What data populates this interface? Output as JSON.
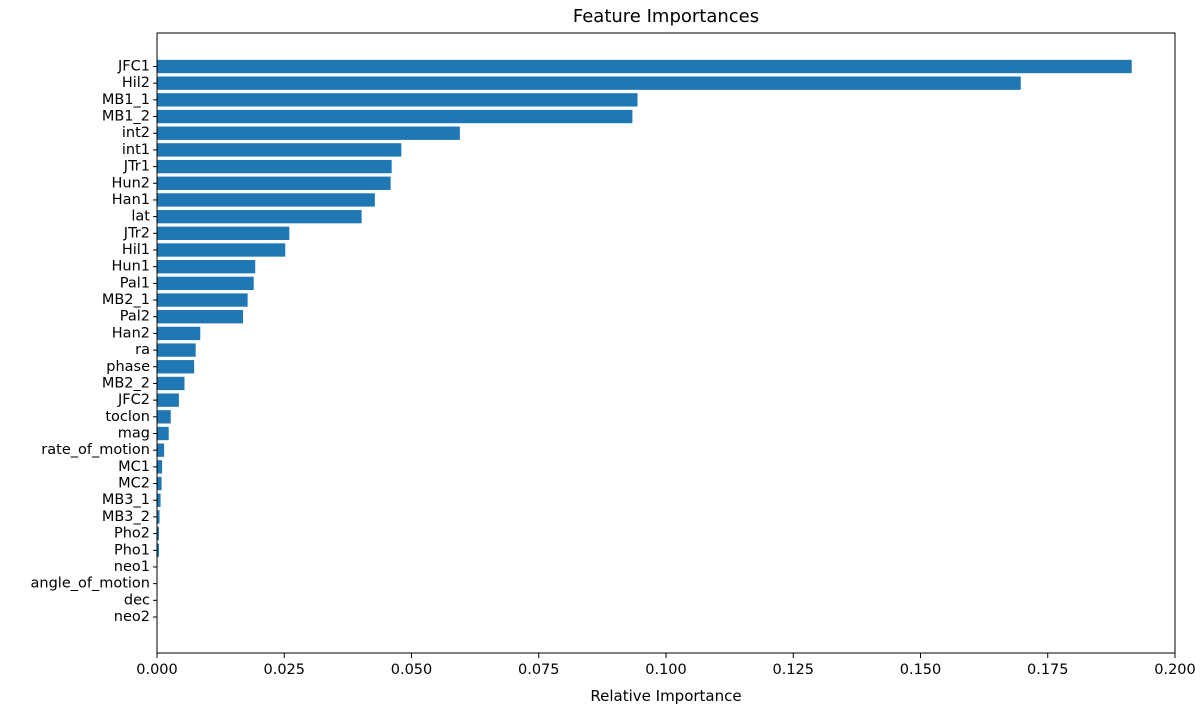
{
  "chart_data": {
    "type": "bar",
    "orientation": "horizontal",
    "title": "Feature Importances",
    "xlabel": "Relative Importance",
    "ylabel": "",
    "xlim": [
      0,
      0.2
    ],
    "xticks": [
      0.0,
      0.025,
      0.05,
      0.075,
      0.1,
      0.125,
      0.15,
      0.175,
      0.2
    ],
    "xtick_labels": [
      "0.000",
      "0.025",
      "0.050",
      "0.075",
      "0.100",
      "0.125",
      "0.150",
      "0.175",
      "0.200"
    ],
    "grid": false,
    "bar_color": "#1f77b4",
    "categories": [
      "JFC1",
      "Hil2",
      "MB1_1",
      "MB1_2",
      "int2",
      "int1",
      "JTr1",
      "Hun2",
      "Han1",
      "lat",
      "JTr2",
      "Hil1",
      "Hun1",
      "Pal1",
      "MB2_1",
      "Pal2",
      "Han2",
      "ra",
      "phase",
      "MB2_2",
      "JFC2",
      "toclon",
      "mag",
      "rate_of_motion",
      "MC1",
      "MC2",
      "MB3_1",
      "MB3_2",
      "Pho2",
      "Pho1",
      "neo1",
      "angle_of_motion",
      "dec",
      "neo2"
    ],
    "values": [
      0.1915,
      0.1697,
      0.0944,
      0.0934,
      0.0595,
      0.048,
      0.0461,
      0.0459,
      0.0428,
      0.0402,
      0.026,
      0.0252,
      0.0193,
      0.019,
      0.0178,
      0.0169,
      0.0085,
      0.0076,
      0.0073,
      0.0054,
      0.0043,
      0.0027,
      0.0023,
      0.0014,
      0.001,
      0.0009,
      0.0007,
      0.0005,
      0.0004,
      0.0004,
      0.0001,
      0.0001,
      0.0,
      0.0
    ]
  }
}
